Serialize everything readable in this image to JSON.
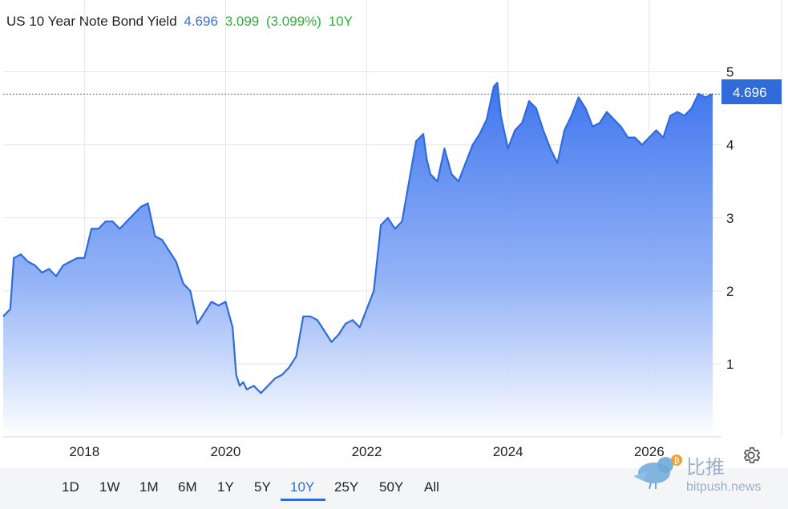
{
  "header": {
    "title": "US 10 Year Note Bond Yield",
    "last": "4.696",
    "change": "3.099",
    "change_pct": "(3.099%)",
    "period": "10Y"
  },
  "value_label": "4.696",
  "range_buttons": [
    "1D",
    "1W",
    "1M",
    "6M",
    "1Y",
    "5Y",
    "10Y",
    "25Y",
    "50Y",
    "All"
  ],
  "active_range": "10Y",
  "watermark": {
    "cn": "比推",
    "en": "bitpush.news"
  },
  "colors": {
    "line": "#2f6bd9",
    "fill_top": "#3d74ee",
    "fill_bottom": "#ffffff",
    "label_bg": "#2f6bd9",
    "positive": "#2eae3a"
  },
  "chart_data": {
    "type": "area",
    "title": "US 10 Year Note Bond Yield",
    "xlabel": "",
    "ylabel": "",
    "xlim": [
      2016.85,
      2026.9
    ],
    "ylim": [
      0,
      5.6
    ],
    "y_ticks": [
      1,
      2,
      3,
      4,
      5
    ],
    "x_ticks": [
      2018,
      2020,
      2022,
      2024,
      2026
    ],
    "grid": true,
    "last_value": 4.696,
    "series": [
      {
        "x": [
          2016.85,
          2016.95,
          2017.0,
          2017.1,
          2017.2,
          2017.3,
          2017.4,
          2017.5,
          2017.6,
          2017.7,
          2017.8,
          2017.9,
          2018.0,
          2018.1,
          2018.2,
          2018.3,
          2018.4,
          2018.5,
          2018.6,
          2018.7,
          2018.8,
          2018.9,
          2019.0,
          2019.1,
          2019.2,
          2019.3,
          2019.4,
          2019.5,
          2019.6,
          2019.7,
          2019.8,
          2019.9,
          2020.0,
          2020.1,
          2020.15,
          2020.2,
          2020.25,
          2020.3,
          2020.4,
          2020.5,
          2020.6,
          2020.7,
          2020.8,
          2020.9,
          2021.0,
          2021.1,
          2021.2,
          2021.3,
          2021.4,
          2021.5,
          2021.6,
          2021.7,
          2021.8,
          2021.9,
          2022.0,
          2022.1,
          2022.2,
          2022.3,
          2022.4,
          2022.5,
          2022.6,
          2022.7,
          2022.8,
          2022.85,
          2022.9,
          2023.0,
          2023.1,
          2023.2,
          2023.3,
          2023.4,
          2023.5,
          2023.6,
          2023.7,
          2023.8,
          2023.85,
          2023.9,
          2024.0,
          2024.1,
          2024.2,
          2024.3,
          2024.4,
          2024.5,
          2024.6,
          2024.7,
          2024.8,
          2024.9,
          2025.0,
          2025.1,
          2025.2,
          2025.3,
          2025.4,
          2025.5,
          2025.6,
          2025.7,
          2025.8,
          2025.9,
          2026.0,
          2026.1,
          2026.2,
          2026.3,
          2026.4,
          2026.5,
          2026.6,
          2026.7,
          2026.8,
          2026.9
        ],
        "y": [
          1.65,
          1.75,
          2.45,
          2.5,
          2.4,
          2.35,
          2.25,
          2.3,
          2.2,
          2.35,
          2.4,
          2.45,
          2.45,
          2.85,
          2.85,
          2.95,
          2.95,
          2.85,
          2.95,
          3.05,
          3.15,
          3.2,
          2.75,
          2.7,
          2.55,
          2.4,
          2.1,
          2.0,
          1.55,
          1.7,
          1.85,
          1.8,
          1.85,
          1.5,
          0.85,
          0.7,
          0.75,
          0.65,
          0.7,
          0.6,
          0.7,
          0.8,
          0.85,
          0.95,
          1.1,
          1.65,
          1.65,
          1.6,
          1.45,
          1.3,
          1.4,
          1.55,
          1.6,
          1.5,
          1.75,
          2.0,
          2.9,
          3.0,
          2.85,
          2.95,
          3.5,
          4.05,
          4.15,
          3.8,
          3.6,
          3.5,
          3.95,
          3.6,
          3.5,
          3.75,
          4.0,
          4.15,
          4.35,
          4.8,
          4.85,
          4.4,
          3.95,
          4.2,
          4.3,
          4.6,
          4.5,
          4.2,
          3.95,
          3.75,
          4.2,
          4.4,
          4.65,
          4.5,
          4.25,
          4.3,
          4.45,
          4.35,
          4.25,
          4.1,
          4.1,
          4.0,
          4.1,
          4.2,
          4.1,
          4.4,
          4.45,
          4.4,
          4.5,
          4.7,
          4.65,
          4.696
        ]
      }
    ]
  }
}
